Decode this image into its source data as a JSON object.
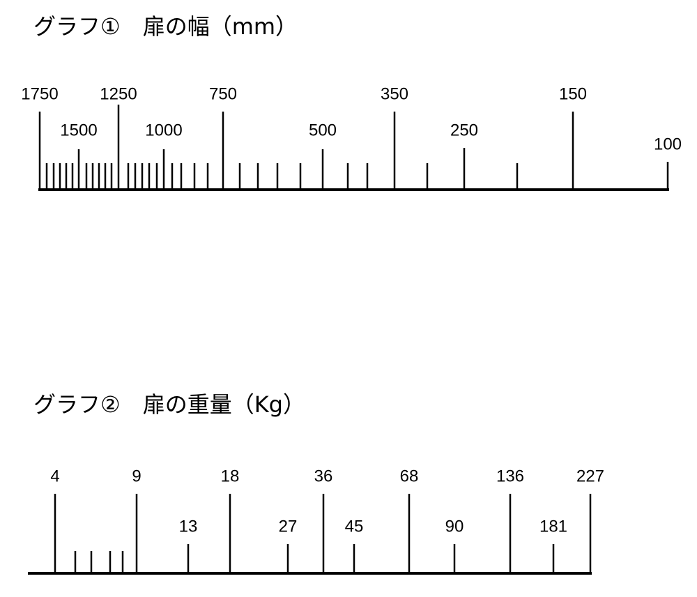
{
  "graphs": [
    {
      "title": "グラフ①　扉の幅（mm）",
      "labels": [
        1750,
        1250,
        750,
        350,
        150,
        1500,
        1000,
        500,
        250,
        100
      ]
    },
    {
      "title": "グラフ②　扉の重量（Kg）",
      "labels": [
        4,
        9,
        18,
        36,
        68,
        136,
        227,
        13,
        27,
        45,
        90,
        181
      ]
    }
  ]
}
